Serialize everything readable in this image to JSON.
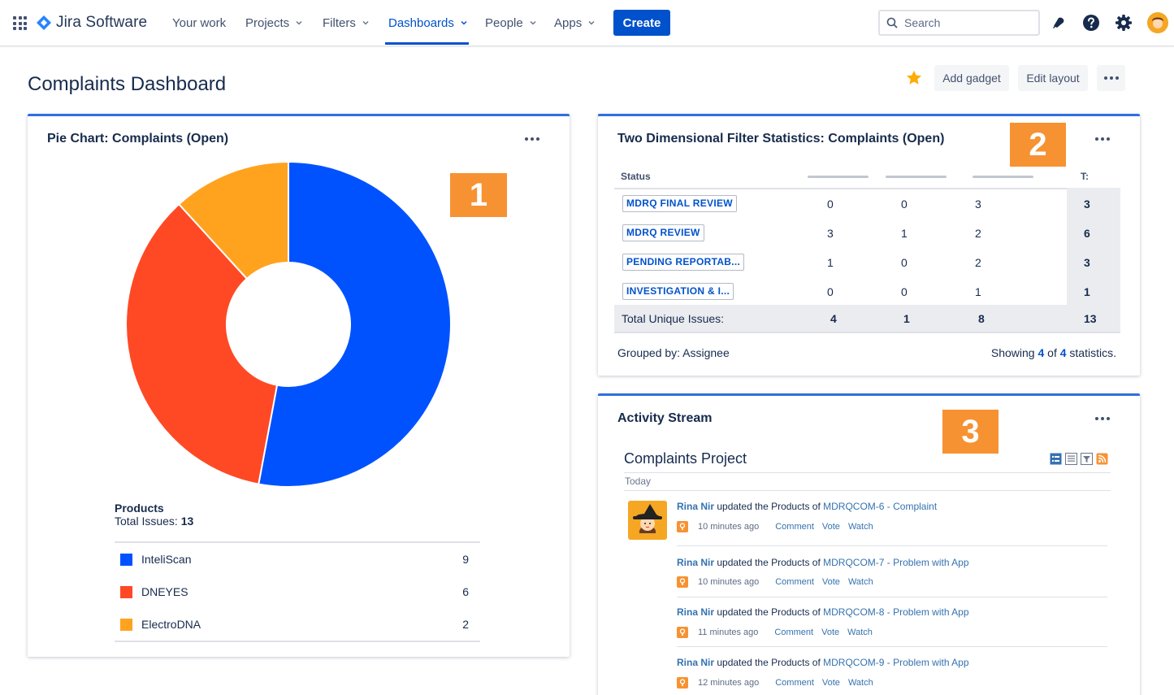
{
  "nav": {
    "product": "Jira Software",
    "items": [
      {
        "label": "Your work"
      },
      {
        "label": "Projects"
      },
      {
        "label": "Filters"
      },
      {
        "label": "Dashboards"
      },
      {
        "label": "People"
      },
      {
        "label": "Apps"
      }
    ],
    "active": "Dashboards",
    "create_label": "Create",
    "search_placeholder": "Search",
    "icons": [
      "app-switcher-icon",
      "jira-logo-icon",
      "notifications-icon",
      "help-icon",
      "settings-icon",
      "user-avatar"
    ]
  },
  "page": {
    "title": "Complaints Dashboard",
    "add_gadget_label": "Add gadget",
    "edit_layout_label": "Edit layout",
    "star_color": "#ffab00"
  },
  "pie_gadget": {
    "title": "Pie Chart: Complaints (Open)",
    "badge": "1",
    "legend_title": "Products",
    "total_label": "Total Issues:",
    "total_value": "13"
  },
  "chart_data": {
    "type": "pie",
    "title": "Products",
    "donut": true,
    "categories": [
      "InteliScan",
      "DNEYES",
      "ElectroDNA"
    ],
    "values": [
      9,
      6,
      2
    ],
    "colors": [
      "#0052ff",
      "#ff4925",
      "#ffa31f"
    ]
  },
  "tds_gadget": {
    "title": "Two Dimensional Filter Statistics: Complaints (Open)",
    "badge": "2",
    "headers": {
      "status": "Status",
      "total": "T:"
    },
    "rows": [
      {
        "status": "MDRQ FINAL REVIEW",
        "c1": "0",
        "c2": "0",
        "c3": "3",
        "t": "3"
      },
      {
        "status": "MDRQ REVIEW",
        "c1": "3",
        "c2": "1",
        "c3": "2",
        "t": "6"
      },
      {
        "status": "PENDING REPORTAB...",
        "c1": "1",
        "c2": "0",
        "c3": "2",
        "t": "3"
      },
      {
        "status": "INVESTIGATION & I...",
        "c1": "0",
        "c2": "0",
        "c3": "1",
        "t": "1"
      }
    ],
    "totals": {
      "label": "Total Unique Issues:",
      "c1": "4",
      "c2": "1",
      "c3": "8",
      "t": "13"
    },
    "grouped_label": "Grouped by: Assignee",
    "showing": {
      "prefix": "Showing",
      "shown": "4",
      "of": "of",
      "total": "4",
      "suffix": "statistics."
    }
  },
  "activity_gadget": {
    "title": "Activity Stream",
    "badge": "3",
    "project": "Complaints Project",
    "today": "Today",
    "entries": [
      {
        "user": "Rina Nir",
        "action": "updated the Products of",
        "issue": "MDRQCOM-6 - Complaint",
        "time": "10 minutes ago"
      },
      {
        "user": "Rina Nir",
        "action": "updated the Products of",
        "issue": "MDRQCOM-7 - Problem with App",
        "time": "10 minutes ago"
      },
      {
        "user": "Rina Nir",
        "action": "updated the Products of",
        "issue": "MDRQCOM-8 - Problem with App",
        "time": "11 minutes ago"
      },
      {
        "user": "Rina Nir",
        "action": "updated the Products of",
        "issue": "MDRQCOM-9 - Problem with App",
        "time": "12 minutes ago"
      }
    ],
    "actions": {
      "comment": "Comment",
      "vote": "Vote",
      "watch": "Watch"
    }
  }
}
